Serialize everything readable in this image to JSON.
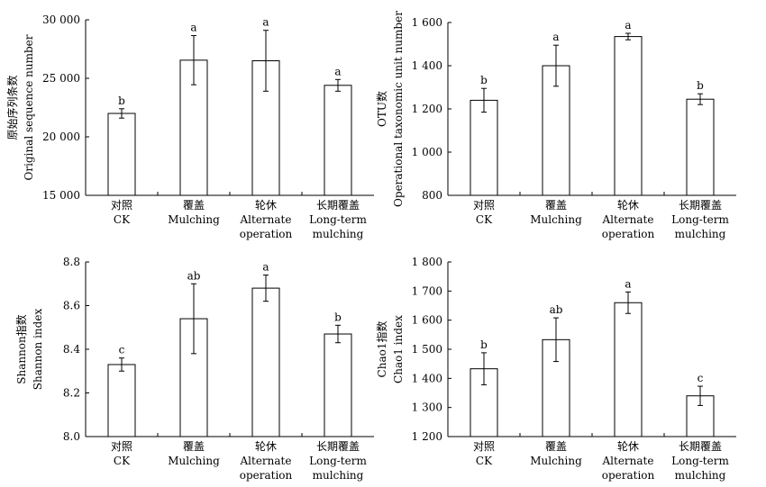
{
  "chart_data": [
    {
      "type": "bar",
      "panel": "top-left",
      "ylabel_cn": "原始序列条数",
      "ylabel_en": "Original sequence number",
      "ylim": [
        15000,
        30000
      ],
      "yticks": [
        15000,
        20000,
        25000,
        30000
      ],
      "ytick_labels": [
        "15 000",
        "20 000",
        "25 000",
        "30 000"
      ],
      "categories": [
        {
          "cn": "对照",
          "en": [
            "CK"
          ]
        },
        {
          "cn": "覆盖",
          "en": [
            "Mulching"
          ]
        },
        {
          "cn": "轮休",
          "en": [
            "Alternate",
            "operation"
          ]
        },
        {
          "cn": "长期覆盖",
          "en": [
            "Long-term",
            "mulching"
          ]
        }
      ],
      "values": [
        22000,
        26550,
        26500,
        24400
      ],
      "errors": [
        400,
        2100,
        2600,
        500
      ],
      "sig_labels": [
        "b",
        "a",
        "a",
        "a"
      ]
    },
    {
      "type": "bar",
      "panel": "top-right",
      "ylabel_cn": "OTU数",
      "ylabel_en": "Operational taxonomic unit number",
      "ylim": [
        800,
        1600
      ],
      "yticks": [
        800,
        1000,
        1200,
        1400,
        1600
      ],
      "ytick_labels": [
        "800",
        "1 000",
        "1 200",
        "1 400",
        "1 600"
      ],
      "categories": [
        {
          "cn": "对照",
          "en": [
            "CK"
          ]
        },
        {
          "cn": "覆盖",
          "en": [
            "Mulching"
          ]
        },
        {
          "cn": "轮休",
          "en": [
            "Alternate",
            "operation"
          ]
        },
        {
          "cn": "长期覆盖",
          "en": [
            "Long-term",
            "mulching"
          ]
        }
      ],
      "values": [
        1240,
        1400,
        1535,
        1245
      ],
      "errors": [
        55,
        95,
        15,
        25
      ],
      "sig_labels": [
        "b",
        "a",
        "a",
        "b"
      ]
    },
    {
      "type": "bar",
      "panel": "bottom-left",
      "ylabel_cn": "Shannon指数",
      "ylabel_en": "Shannon index",
      "ylim": [
        8.0,
        8.8
      ],
      "yticks": [
        8.0,
        8.2,
        8.4,
        8.6,
        8.8
      ],
      "ytick_labels": [
        "8.0",
        "8.2",
        "8.4",
        "8.6",
        "8.8"
      ],
      "categories": [
        {
          "cn": "对照",
          "en": [
            "CK"
          ]
        },
        {
          "cn": "覆盖",
          "en": [
            "Mulching"
          ]
        },
        {
          "cn": "轮休",
          "en": [
            "Alternate",
            "operation"
          ]
        },
        {
          "cn": "长期覆盖",
          "en": [
            "Long-term",
            "mulching"
          ]
        }
      ],
      "values": [
        8.33,
        8.54,
        8.68,
        8.47
      ],
      "errors": [
        0.03,
        0.16,
        0.06,
        0.04
      ],
      "sig_labels": [
        "c",
        "ab",
        "a",
        "b"
      ]
    },
    {
      "type": "bar",
      "panel": "bottom-right",
      "ylabel_cn": "Chao1指数",
      "ylabel_en": "Chao1 index",
      "ylim": [
        1200,
        1800
      ],
      "yticks": [
        1200,
        1300,
        1400,
        1500,
        1600,
        1700,
        1800
      ],
      "ytick_labels": [
        "1 200",
        "1 300",
        "1 400",
        "1 500",
        "1 600",
        "1 700",
        "1 800"
      ],
      "categories": [
        {
          "cn": "对照",
          "en": [
            "CK"
          ]
        },
        {
          "cn": "覆盖",
          "en": [
            "Mulching"
          ]
        },
        {
          "cn": "轮休",
          "en": [
            "Alternate",
            "operation"
          ]
        },
        {
          "cn": "长期覆盖",
          "en": [
            "Long-term",
            "mulching"
          ]
        }
      ],
      "values": [
        1433,
        1533,
        1660,
        1340
      ],
      "errors": [
        55,
        75,
        37,
        33
      ],
      "sig_labels": [
        "b",
        "ab",
        "a",
        "c"
      ]
    }
  ]
}
